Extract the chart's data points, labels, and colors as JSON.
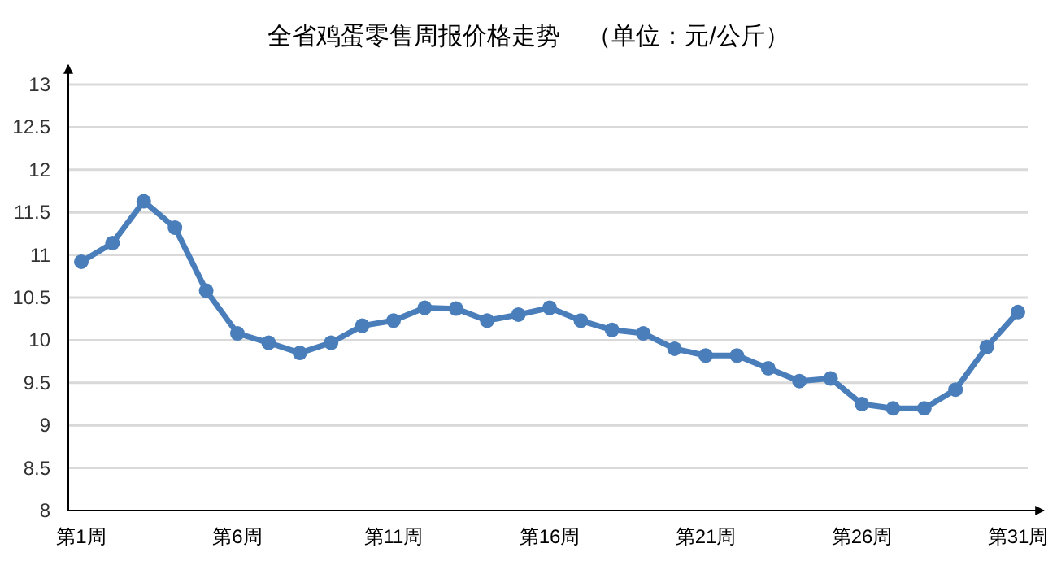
{
  "chart_data": {
    "type": "line",
    "title": "全省鸡蛋零售周报价格走势    （单位：元/公斤）",
    "categories": [
      "第1周",
      null,
      null,
      null,
      null,
      "第6周",
      null,
      null,
      null,
      null,
      "第11周",
      null,
      null,
      null,
      null,
      "第16周",
      null,
      null,
      null,
      null,
      "第21周",
      null,
      null,
      null,
      null,
      "第26周",
      null,
      null,
      null,
      null,
      "第31周"
    ],
    "series": [
      {
        "color": "#4a7ebb",
        "values": [
          10.92,
          11.14,
          11.63,
          11.32,
          10.58,
          10.08,
          9.97,
          9.85,
          9.97,
          10.17,
          10.23,
          10.38,
          10.37,
          10.23,
          10.3,
          10.38,
          10.23,
          10.12,
          10.08,
          9.9,
          9.82,
          9.82,
          9.67,
          9.52,
          9.55,
          9.25,
          9.2,
          9.2,
          9.42,
          9.92,
          10.33
        ]
      }
    ],
    "ylim": [
      8,
      13
    ],
    "yticks": [
      8,
      8.5,
      9,
      9.5,
      10,
      10.5,
      11,
      11.5,
      12,
      12.5,
      13
    ],
    "grid": "y",
    "marker": "circle",
    "line_style": "solid"
  }
}
